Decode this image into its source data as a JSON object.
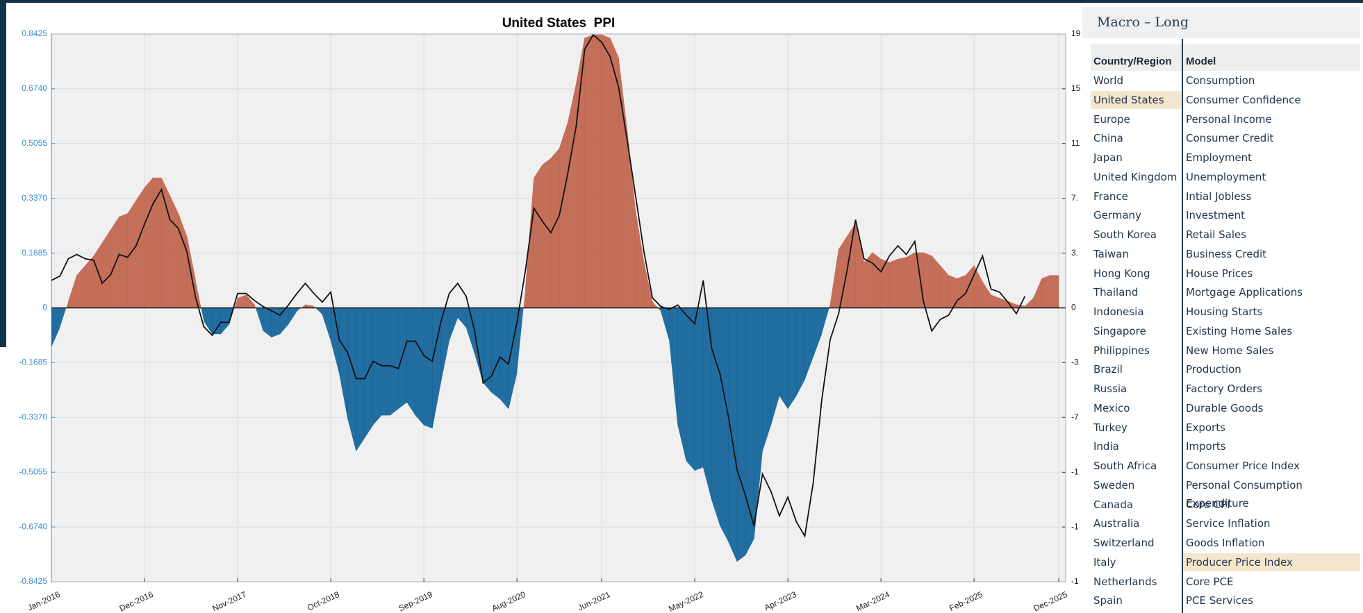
{
  "chart_data": {
    "type": "area",
    "title": "United States  PPI",
    "x": [
      "Jan-2016",
      "Feb-2016",
      "Mar-2016",
      "Apr-2016",
      "May-2016",
      "Jun-2016",
      "Jul-2016",
      "Aug-2016",
      "Sep-2016",
      "Oct-2016",
      "Nov-2016",
      "Dec-2016",
      "Jan-2017",
      "Feb-2017",
      "Mar-2017",
      "Apr-2017",
      "May-2017",
      "Jun-2017",
      "Jul-2017",
      "Aug-2017",
      "Sep-2017",
      "Oct-2017",
      "Nov-2017",
      "Dec-2017",
      "Jan-2018",
      "Feb-2018",
      "Mar-2018",
      "Apr-2018",
      "May-2018",
      "Jun-2018",
      "Jul-2018",
      "Aug-2018",
      "Sep-2018",
      "Oct-2018",
      "Nov-2018",
      "Dec-2018",
      "Jan-2019",
      "Feb-2019",
      "Mar-2019",
      "Apr-2019",
      "May-2019",
      "Jun-2019",
      "Jul-2019",
      "Aug-2019",
      "Sep-2019",
      "Oct-2019",
      "Nov-2019",
      "Dec-2019",
      "Jan-2020",
      "Feb-2020",
      "Mar-2020",
      "Apr-2020",
      "May-2020",
      "Jun-2020",
      "Jul-2020",
      "Aug-2020",
      "Sep-2020",
      "Oct-2020",
      "Nov-2020",
      "Dec-2020",
      "Jan-2021",
      "Feb-2021",
      "Mar-2021",
      "Apr-2021",
      "May-2021",
      "Jun-2021",
      "Jul-2021",
      "Aug-2021",
      "Sep-2021",
      "Oct-2021",
      "Nov-2021",
      "Dec-2021",
      "Jan-2022",
      "Feb-2022",
      "Mar-2022",
      "Apr-2022",
      "May-2022",
      "Jun-2022",
      "Jul-2022",
      "Aug-2022",
      "Sep-2022",
      "Oct-2022",
      "Nov-2022",
      "Dec-2022",
      "Jan-2023",
      "Feb-2023",
      "Mar-2023",
      "Apr-2023",
      "May-2023",
      "Jun-2023",
      "Jul-2023",
      "Aug-2023",
      "Sep-2023",
      "Oct-2023",
      "Nov-2023",
      "Dec-2023",
      "Jan-2024",
      "Feb-2024",
      "Mar-2024",
      "Apr-2024",
      "May-2024",
      "Jun-2024",
      "Jul-2024",
      "Aug-2024",
      "Sep-2024",
      "Oct-2024",
      "Nov-2024",
      "Dec-2024",
      "Jan-2025",
      "Feb-2025",
      "Mar-2025",
      "Apr-2025",
      "May-2025",
      "Jun-2025",
      "Jul-2025",
      "Aug-2025",
      "Sep-2025",
      "Oct-2025",
      "Nov-2025",
      "Dec-2025"
    ],
    "xticks": [
      "Jan-2016",
      "Dec-2016",
      "Nov-2017",
      "Oct-2018",
      "Sep-2019",
      "Aug-2020",
      "Jun-2021",
      "May-2022",
      "Apr-2023",
      "Mar-2024",
      "Feb-2025",
      "Dec-2025"
    ],
    "series": [
      {
        "type": "area",
        "color": "#c0624a",
        "negative_color": "#0d6199",
        "values": [
          -0.12,
          -0.06,
          0.02,
          0.1,
          0.13,
          0.16,
          0.2,
          0.24,
          0.28,
          0.29,
          0.33,
          0.37,
          0.4,
          0.4,
          0.345,
          0.29,
          0.22,
          0.09,
          -0.04,
          -0.08,
          -0.08,
          -0.05,
          0.03,
          0.04,
          0.01,
          -0.07,
          -0.09,
          -0.08,
          -0.05,
          -0.01,
          0.01,
          0.005,
          -0.02,
          -0.1,
          -0.2,
          -0.34,
          -0.44,
          -0.4,
          -0.36,
          -0.33,
          -0.33,
          -0.31,
          -0.29,
          -0.33,
          -0.36,
          -0.37,
          -0.23,
          -0.1,
          -0.03,
          -0.06,
          -0.14,
          -0.23,
          -0.26,
          -0.28,
          -0.31,
          -0.2,
          0.06,
          0.4,
          0.44,
          0.46,
          0.49,
          0.57,
          0.69,
          0.83,
          0.84,
          0.84,
          0.83,
          0.77,
          0.55,
          0.3,
          0.14,
          0.02,
          -0.01,
          -0.1,
          -0.36,
          -0.47,
          -0.5,
          -0.49,
          -0.59,
          -0.67,
          -0.72,
          -0.78,
          -0.76,
          -0.71,
          -0.44,
          -0.36,
          -0.27,
          -0.31,
          -0.27,
          -0.22,
          -0.15,
          -0.08,
          0.01,
          0.18,
          0.22,
          0.26,
          0.14,
          0.17,
          0.15,
          0.14,
          0.15,
          0.155,
          0.17,
          0.17,
          0.16,
          0.13,
          0.1,
          0.09,
          0.1,
          0.13,
          0.08,
          0.04,
          0.03,
          0.02,
          0.01,
          0.005,
          0.03,
          0.09,
          0.1,
          0.1
        ]
      },
      {
        "type": "line",
        "axis": "y2",
        "color": "#111111",
        "values": [
          1.9,
          2.2,
          3.4,
          3.7,
          3.4,
          3.3,
          1.7,
          2.3,
          3.7,
          3.5,
          4.3,
          5.8,
          7.2,
          8.2,
          6.1,
          5.5,
          3.9,
          0.8,
          -1.3,
          -1.9,
          -1.0,
          -1.0,
          1.0,
          1.0,
          0.5,
          0.1,
          -0.2,
          -0.5,
          0.2,
          1.0,
          1.7,
          1.0,
          0.4,
          1.1,
          -2.2,
          -3.1,
          -4.9,
          -4.9,
          -3.7,
          -4.0,
          -4.0,
          -4.2,
          -2.3,
          -2.3,
          -3.3,
          -3.7,
          -1.0,
          1.0,
          1.7,
          0.8,
          -1.6,
          -5.2,
          -4.7,
          -3.4,
          -3.9,
          -1.0,
          2.6,
          6.9,
          6.0,
          5.2,
          6.4,
          9.3,
          12.6,
          17.9,
          18.9,
          18.4,
          17.4,
          15.3,
          11.7,
          7.8,
          3.9,
          0.7,
          0.1,
          -0.1,
          0.2,
          -0.5,
          -1.1,
          1.9,
          -2.8,
          -4.6,
          -7.6,
          -11.2,
          -13.0,
          -15.1,
          -11.5,
          -12.7,
          -14.4,
          -13.1,
          -14.8,
          -15.8,
          -12.1,
          -6.4,
          -2.2,
          -0.4,
          2.6,
          6.1,
          3.4,
          3.1,
          2.5,
          3.6,
          4.3,
          3.7,
          4.6,
          0.5,
          -1.6,
          -0.8,
          -0.5,
          0.5,
          1.0,
          2.3,
          3.6,
          1.3,
          1.1,
          0.4,
          -0.4,
          0.8,
          null,
          null,
          null,
          null
        ]
      }
    ],
    "ylim": [
      -0.8425,
      0.8425
    ],
    "yticks": [
      0.8425,
      {
        "value": 0.674,
        "label": "0.6740"
      },
      0.5055,
      {
        "value": 0.337,
        "label": "0.3370"
      },
      0.1685,
      0,
      -0.1685,
      {
        "value": -0.337,
        "label": "-0.3370"
      },
      -0.5055,
      {
        "value": -0.674,
        "label": "-0.6740"
      },
      -0.8425
    ],
    "y2lim": [
      -18.96,
      18.96
    ],
    "y2ticks": [
      {
        "value": 18.96,
        "label": "19"
      },
      {
        "value": 15.17,
        "label": "15"
      },
      {
        "value": 11.38,
        "label": "11"
      },
      {
        "value": 7.58,
        "label": "7."
      },
      {
        "value": 3.79,
        "label": "3."
      },
      0,
      {
        "value": -3.79,
        "label": "-3"
      },
      {
        "value": -7.58,
        "label": "-7"
      },
      {
        "value": -11.38,
        "label": "-1"
      },
      {
        "value": -15.17,
        "label": "-1"
      },
      {
        "value": -18.96,
        "label": "-1"
      }
    ],
    "grid": true
  },
  "panel": {
    "title": "Macro – Long",
    "columns": [
      "Country/Region",
      "Model"
    ],
    "countries": [
      "World",
      "United States",
      "Europe",
      "China",
      "Japan",
      "United Kingdom",
      "France",
      "Germany",
      "South Korea",
      "Taiwan",
      "Hong Kong",
      "Thailand",
      "Indonesia",
      "Singapore",
      "Philippines",
      "Brazil",
      "Russia",
      "Mexico",
      "Turkey",
      "India",
      "South Africa",
      "Sweden",
      "Canada",
      "Australia",
      "Switzerland",
      "Italy",
      "Netherlands",
      "Spain"
    ],
    "models": [
      "Consumption",
      "Consumer Confidence",
      "Personal Income",
      "Consumer Credit",
      "Employment",
      "Unemployment",
      "Intial Jobless",
      "Investment",
      "Retail Sales",
      "Business Credit",
      "House Prices",
      "Mortgage Applications",
      "Housing Starts",
      "Existing Home Sales",
      "New Home Sales",
      "Production",
      "Factory Orders",
      "Durable Goods",
      "Exports",
      "Imports",
      "Consumer Price Index",
      "Personal Consumption Expenditure",
      "Core CPI",
      "Service Inflation",
      "Goods Inflation",
      "Producer Price Index",
      "Core PCE",
      "PCE Services"
    ],
    "selected_country": 1,
    "selected_model": 25
  }
}
